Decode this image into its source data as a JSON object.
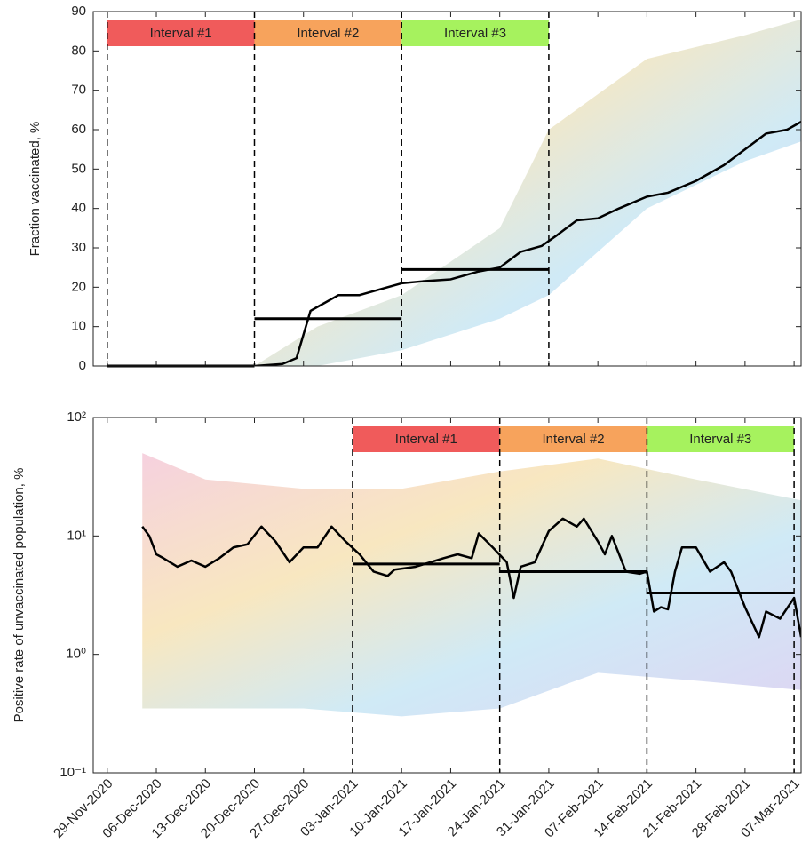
{
  "chart_data": [
    {
      "type": "line",
      "ylabel": "Fraction vaccinated, %",
      "xlim": [
        "2020-11-27",
        "2021-03-08"
      ],
      "ylim": [
        0,
        90
      ],
      "yticks": [
        0,
        10,
        20,
        30,
        40,
        50,
        60,
        70,
        80,
        90
      ],
      "band": {
        "x": [
          "2020-12-20",
          "2020-12-29",
          "2021-01-10",
          "2021-01-24",
          "2021-01-31",
          "2021-02-14",
          "2021-02-28",
          "2021-03-08"
        ],
        "lower": [
          0,
          0,
          4,
          12,
          18,
          40,
          52,
          57
        ],
        "upper": [
          0,
          10,
          18,
          35,
          60,
          78,
          84,
          88
        ]
      },
      "series": [
        {
          "color": "#000000",
          "x": [
            "2020-11-29",
            "2020-12-20",
            "2020-12-24",
            "2020-12-26",
            "2020-12-28",
            "2020-12-29",
            "2021-01-01",
            "2021-01-04",
            "2021-01-08",
            "2021-01-10",
            "2021-01-13",
            "2021-01-17",
            "2021-01-21",
            "2021-01-24",
            "2021-01-27",
            "2021-01-30",
            "2021-02-01",
            "2021-02-04",
            "2021-02-07",
            "2021-02-10",
            "2021-02-14",
            "2021-02-17",
            "2021-02-21",
            "2021-02-25",
            "2021-02-28",
            "2021-03-03",
            "2021-03-06",
            "2021-03-08"
          ],
          "values": [
            0,
            0,
            0.5,
            2,
            14,
            15,
            18,
            18,
            20,
            21,
            21.5,
            22,
            24,
            25,
            29,
            30.5,
            33,
            37,
            37.5,
            40,
            43,
            44,
            47,
            51,
            55,
            59,
            60,
            62
          ]
        }
      ],
      "intervals": [
        {
          "label": "Interval #1",
          "start": "2020-11-29",
          "end": "2020-12-20",
          "value": 0,
          "color": "#f05b5b"
        },
        {
          "label": "Interval #2",
          "start": "2020-12-20",
          "end": "2021-01-10",
          "value": 12,
          "color": "#f7a35c"
        },
        {
          "label": "Interval #3",
          "start": "2021-01-10",
          "end": "2021-01-31",
          "value": 24.5,
          "color": "#a6f25e"
        }
      ]
    },
    {
      "type": "line",
      "ylabel": "Positive rate of unvaccinated population, %",
      "log_scale": true,
      "xlim": [
        "2020-11-27",
        "2021-03-08"
      ],
      "ylim": [
        0.1,
        100
      ],
      "yticks": [
        {
          "value": 0.1,
          "label": "10⁻¹"
        },
        {
          "value": 1,
          "label": "10⁰"
        },
        {
          "value": 10,
          "label": "10¹"
        },
        {
          "value": 100,
          "label": "10²"
        }
      ],
      "xticks": [
        {
          "value": "2020-11-29",
          "label": "29-Nov-2020"
        },
        {
          "value": "2020-12-06",
          "label": "06-Dec-2020"
        },
        {
          "value": "2020-12-13",
          "label": "13-Dec-2020"
        },
        {
          "value": "2020-12-20",
          "label": "20-Dec-2020"
        },
        {
          "value": "2020-12-27",
          "label": "27-Dec-2020"
        },
        {
          "value": "2021-01-03",
          "label": "03-Jan-2021"
        },
        {
          "value": "2021-01-10",
          "label": "10-Jan-2021"
        },
        {
          "value": "2021-01-17",
          "label": "17-Jan-2021"
        },
        {
          "value": "2021-01-24",
          "label": "24-Jan-2021"
        },
        {
          "value": "2021-01-31",
          "label": "31-Jan-2021"
        },
        {
          "value": "2021-02-07",
          "label": "07-Feb-2021"
        },
        {
          "value": "2021-02-14",
          "label": "14-Feb-2021"
        },
        {
          "value": "2021-02-21",
          "label": "21-Feb-2021"
        },
        {
          "value": "2021-02-28",
          "label": "28-Feb-2021"
        },
        {
          "value": "2021-03-07",
          "label": "07-Mar-2021"
        }
      ],
      "band": {
        "x": [
          "2020-12-04",
          "2020-12-13",
          "2020-12-27",
          "2021-01-10",
          "2021-01-24",
          "2021-02-07",
          "2021-02-21",
          "2021-03-08"
        ],
        "lower": [
          0.35,
          0.35,
          0.35,
          0.3,
          0.35,
          0.7,
          0.6,
          0.5
        ],
        "upper": [
          50,
          30,
          25,
          25,
          35,
          45,
          30,
          20
        ]
      },
      "series": [
        {
          "color": "#000000",
          "x": [
            "2020-12-04",
            "2020-12-05",
            "2020-12-06",
            "2020-12-07",
            "2020-12-09",
            "2020-12-11",
            "2020-12-13",
            "2020-12-15",
            "2020-12-17",
            "2020-12-19",
            "2020-12-21",
            "2020-12-23",
            "2020-12-25",
            "2020-12-27",
            "2020-12-29",
            "2020-12-31",
            "2021-01-02",
            "2021-01-04",
            "2021-01-06",
            "2021-01-08",
            "2021-01-09",
            "2021-01-12",
            "2021-01-16",
            "2021-01-18",
            "2021-01-20",
            "2021-01-21",
            "2021-01-23",
            "2021-01-25",
            "2021-01-26",
            "2021-01-27",
            "2021-01-29",
            "2021-01-31",
            "2021-02-02",
            "2021-02-04",
            "2021-02-05",
            "2021-02-07",
            "2021-02-08",
            "2021-02-09",
            "2021-02-11",
            "2021-02-13",
            "2021-02-14",
            "2021-02-15",
            "2021-02-16",
            "2021-02-17",
            "2021-02-18",
            "2021-02-19",
            "2021-02-21",
            "2021-02-23",
            "2021-02-25",
            "2021-02-26",
            "2021-02-28",
            "2021-03-02",
            "2021-03-03",
            "2021-03-05",
            "2021-03-07",
            "2021-03-08"
          ],
          "values": [
            12,
            10,
            7,
            6.5,
            5.5,
            6.2,
            5.5,
            6.5,
            8,
            8.5,
            12,
            9,
            6,
            8,
            8,
            12,
            9,
            7,
            5,
            4.6,
            5.2,
            5.5,
            6.5,
            7,
            6.5,
            10.5,
            8,
            6,
            3,
            5.5,
            6,
            11,
            14,
            12,
            14,
            9,
            7,
            10,
            5,
            4.8,
            5,
            2.3,
            2.5,
            2.4,
            5,
            8,
            8,
            5,
            6,
            5,
            2.5,
            1.4,
            2.3,
            2,
            3,
            1.4
          ]
        }
      ],
      "intervals": [
        {
          "label": "Interval #1",
          "start": "2021-01-03",
          "end": "2021-01-24",
          "value": 5.8,
          "color": "#f05b5b"
        },
        {
          "label": "Interval #2",
          "start": "2021-01-24",
          "end": "2021-02-14",
          "value": 5.0,
          "color": "#f7a35c"
        },
        {
          "label": "Interval #3",
          "start": "2021-02-14",
          "end": "2021-03-07",
          "value": 3.3,
          "color": "#a6f25e"
        }
      ]
    }
  ]
}
